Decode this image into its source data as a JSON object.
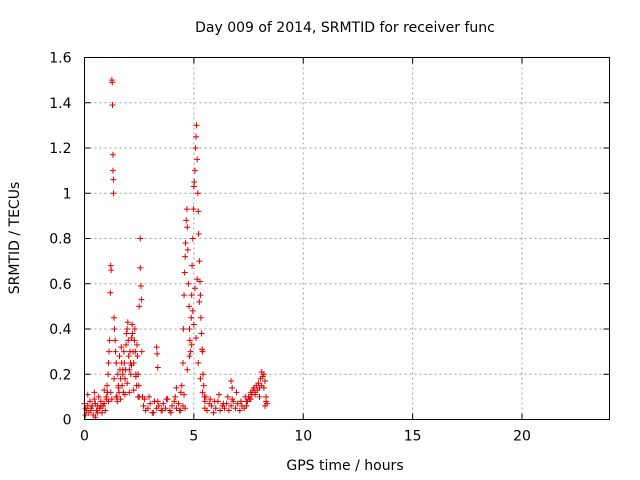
{
  "chart_data": {
    "type": "scatter",
    "title": "Day 009 of 2014, SRMTID for receiver func",
    "xlabel": "GPS time / hours",
    "ylabel": "SRMTID / TECUs",
    "xlim": [
      0,
      24
    ],
    "ylim": [
      0,
      1.6
    ],
    "xticks": [
      0,
      5,
      10,
      15,
      20
    ],
    "xtick_labels": [
      "0",
      "5",
      "10",
      "15",
      "20"
    ],
    "yticks": [
      0,
      0.2,
      0.4,
      0.6,
      0.8,
      1,
      1.2,
      1.4,
      1.6
    ],
    "ytick_labels": [
      "0",
      "0.2",
      "0.4",
      "0.6",
      "0.8",
      "1",
      "1.2",
      "1.4",
      "1.6"
    ],
    "grid": true,
    "marker": "+",
    "marker_color": "#e00000",
    "series": [
      {
        "name": "SRMTID",
        "x": [
          0.0,
          0.05,
          0.1,
          0.15,
          0.2,
          0.25,
          0.3,
          0.35,
          0.4,
          0.45,
          0.5,
          0.55,
          0.6,
          0.65,
          0.7,
          0.75,
          0.8,
          0.85,
          0.9,
          0.95,
          1.0,
          0.05,
          0.15,
          0.3,
          0.45,
          0.6,
          0.75,
          0.9,
          0.5,
          0.7,
          1.0,
          1.03,
          1.05,
          1.08,
          1.1,
          1.12,
          1.15,
          1.18,
          1.2,
          1.22,
          1.25,
          1.27,
          1.28,
          1.3,
          1.3,
          1.32,
          1.33,
          1.35,
          1.37,
          1.4,
          1.42,
          1.45,
          1.48,
          1.5,
          1.52,
          1.55,
          1.58,
          1.6,
          1.62,
          1.65,
          1.68,
          1.7,
          1.72,
          1.75,
          1.78,
          1.8,
          1.82,
          1.85,
          1.88,
          1.9,
          1.92,
          1.95,
          1.98,
          2.0,
          2.02,
          2.05,
          2.08,
          2.1,
          2.12,
          2.15,
          2.18,
          2.2,
          2.22,
          2.25,
          2.28,
          2.3,
          2.32,
          2.35,
          2.38,
          2.4,
          2.42,
          2.45,
          2.48,
          2.5,
          1.1,
          1.2,
          1.25,
          1.35,
          1.45,
          1.55,
          1.65,
          1.75,
          1.85,
          1.95,
          2.05,
          2.15,
          2.25,
          2.35,
          2.45,
          2.5,
          2.55,
          2.55,
          2.58,
          2.6,
          2.62,
          2.65,
          2.7,
          2.8,
          2.9,
          3.0,
          3.1,
          3.2,
          3.3,
          3.4,
          3.5,
          3.6,
          3.7,
          3.8,
          3.9,
          4.0,
          4.1,
          4.2,
          4.3,
          4.4,
          4.5,
          4.6,
          2.75,
          2.95,
          3.15,
          3.35,
          3.55,
          3.75,
          3.95,
          4.15,
          4.35,
          4.55,
          3.3,
          3.32,
          3.35,
          4.2,
          4.4,
          4.45,
          4.5,
          4.52,
          4.55,
          4.58,
          4.6,
          4.62,
          4.65,
          4.68,
          4.7,
          4.72,
          4.75,
          4.78,
          4.8,
          4.82,
          4.85,
          4.88,
          4.9,
          4.92,
          4.95,
          4.98,
          5.0,
          5.02,
          5.05,
          5.08,
          5.1,
          5.12,
          5.15,
          5.18,
          5.2,
          5.22,
          5.25,
          5.28,
          5.3,
          5.32,
          5.35,
          5.38,
          5.4,
          5.42,
          5.45,
          5.48,
          5.5,
          4.7,
          4.8,
          4.9,
          5.0,
          5.1,
          5.2,
          5.3,
          5.4,
          4.95,
          5.05,
          5.15,
          5.25,
          5.5,
          5.6,
          5.7,
          5.8,
          5.9,
          6.0,
          6.1,
          6.2,
          6.3,
          6.4,
          6.5,
          6.6,
          6.7,
          6.8,
          6.9,
          7.0,
          7.1,
          7.2,
          7.3,
          7.4,
          5.55,
          5.75,
          5.95,
          6.15,
          6.35,
          6.55,
          6.75,
          6.95,
          7.15,
          7.35,
          6.7,
          6.75,
          7.4,
          7.45,
          7.5,
          7.55,
          7.6,
          7.65,
          7.7,
          7.75,
          7.8,
          7.85,
          7.9,
          7.95,
          8.0,
          8.05,
          8.1,
          8.15,
          8.2,
          8.25,
          8.3,
          8.35,
          7.6,
          7.8,
          8.0,
          8.2,
          8.3,
          8.1,
          8.25
        ],
        "y": [
          0.07,
          0.05,
          0.04,
          0.06,
          0.03,
          0.08,
          0.05,
          0.06,
          0.02,
          0.09,
          0.07,
          0.04,
          0.06,
          0.1,
          0.05,
          0.08,
          0.03,
          0.06,
          0.07,
          0.04,
          0.09,
          0.02,
          0.11,
          0.04,
          0.12,
          0.03,
          0.06,
          0.13,
          0.01,
          0.05,
          0.1,
          0.15,
          0.12,
          0.2,
          0.25,
          0.3,
          0.35,
          0.56,
          0.68,
          0.66,
          1.5,
          1.49,
          1.39,
          1.17,
          1.1,
          1.06,
          1.0,
          0.45,
          0.4,
          0.35,
          0.3,
          0.25,
          0.1,
          0.08,
          0.2,
          0.15,
          0.12,
          0.28,
          0.22,
          0.18,
          0.32,
          0.25,
          0.15,
          0.2,
          0.12,
          0.3,
          0.25,
          0.18,
          0.22,
          0.33,
          0.38,
          0.4,
          0.43,
          0.35,
          0.28,
          0.22,
          0.3,
          0.25,
          0.2,
          0.36,
          0.42,
          0.38,
          0.3,
          0.25,
          0.35,
          0.4,
          0.3,
          0.2,
          0.15,
          0.33,
          0.28,
          0.2,
          0.15,
          0.1,
          0.08,
          0.12,
          0.09,
          0.18,
          0.1,
          0.14,
          0.09,
          0.22,
          0.11,
          0.16,
          0.12,
          0.24,
          0.13,
          0.19,
          0.1,
          0.5,
          0.8,
          0.67,
          0.59,
          0.53,
          0.3,
          0.1,
          0.06,
          0.04,
          0.05,
          0.07,
          0.03,
          0.08,
          0.05,
          0.06,
          0.04,
          0.07,
          0.05,
          0.09,
          0.04,
          0.06,
          0.08,
          0.05,
          0.07,
          0.04,
          0.06,
          0.05,
          0.09,
          0.1,
          0.03,
          0.08,
          0.04,
          0.09,
          0.03,
          0.1,
          0.04,
          0.11,
          0.32,
          0.29,
          0.23,
          0.14,
          0.12,
          0.15,
          0.25,
          0.4,
          0.55,
          0.65,
          0.72,
          0.78,
          0.88,
          0.93,
          0.85,
          0.75,
          0.6,
          0.5,
          0.4,
          0.35,
          0.3,
          0.45,
          0.55,
          0.68,
          0.8,
          0.93,
          1.03,
          1.05,
          1.1,
          1.2,
          1.25,
          1.3,
          1.15,
          1.0,
          0.92,
          0.82,
          0.7,
          0.61,
          0.55,
          0.45,
          0.38,
          0.31,
          0.3,
          0.2,
          0.15,
          0.1,
          0.08,
          0.22,
          0.28,
          0.33,
          0.42,
          0.36,
          0.25,
          0.18,
          0.12,
          0.48,
          0.58,
          0.62,
          0.52,
          0.05,
          0.04,
          0.07,
          0.06,
          0.03,
          0.05,
          0.08,
          0.04,
          0.06,
          0.05,
          0.07,
          0.04,
          0.06,
          0.08,
          0.05,
          0.07,
          0.04,
          0.06,
          0.05,
          0.08,
          0.1,
          0.09,
          0.08,
          0.11,
          0.07,
          0.1,
          0.09,
          0.12,
          0.08,
          0.1,
          0.17,
          0.14,
          0.06,
          0.08,
          0.1,
          0.09,
          0.12,
          0.11,
          0.13,
          0.14,
          0.12,
          0.15,
          0.13,
          0.16,
          0.14,
          0.18,
          0.15,
          0.19,
          0.2,
          0.17,
          0.1,
          0.07,
          0.09,
          0.11,
          0.1,
          0.14,
          0.08,
          0.21,
          0.06
        ]
      }
    ]
  }
}
